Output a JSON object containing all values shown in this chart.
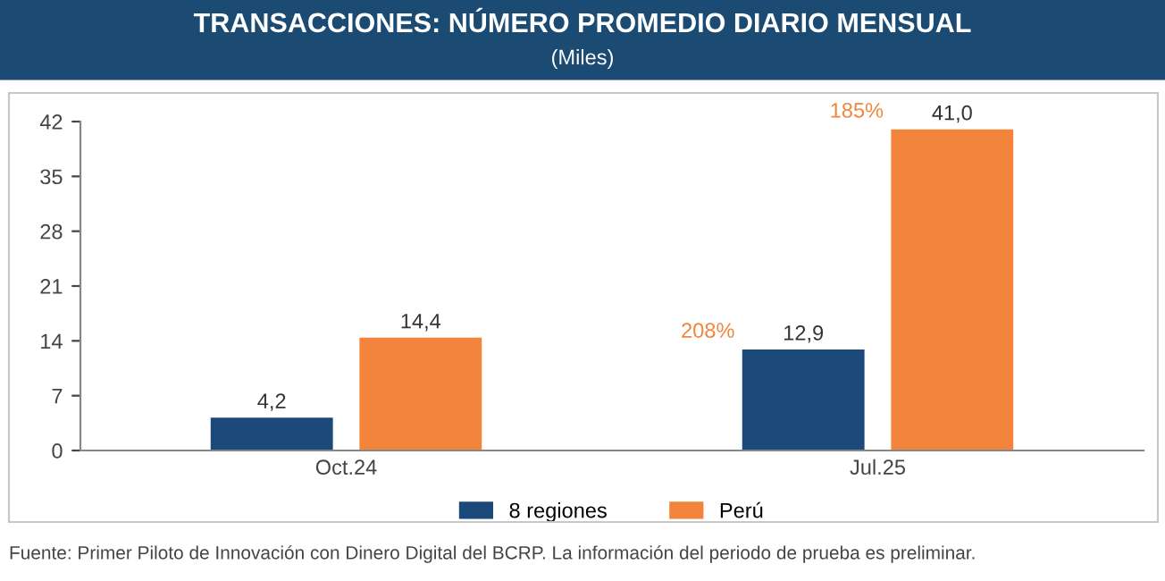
{
  "chart_data": {
    "type": "bar",
    "title": "TRANSACCIONES: NÚMERO PROMEDIO DIARIO MENSUAL",
    "subtitle": "(Miles)",
    "categories": [
      "Oct.24",
      "Jul.25"
    ],
    "series": [
      {
        "name": "8 regiones",
        "color": "#1b4a7a",
        "values": [
          4.2,
          12.9
        ],
        "value_labels": [
          "4,2",
          "12,9"
        ]
      },
      {
        "name": "Perú",
        "color": "#f2843c",
        "values": [
          14.4,
          41.0
        ],
        "value_labels": [
          "14,4",
          "41,0"
        ]
      }
    ],
    "ylim": [
      0,
      42
    ],
    "yticks": [
      0,
      7,
      14,
      21,
      28,
      35,
      42
    ],
    "grid": false,
    "legend": "bottom",
    "annotations": [
      "208%",
      "185%",
      "Fuente: Primer Piloto de Innovación con Dinero Digital del BCRP. La información del periodo de prueba es preliminar."
    ]
  }
}
